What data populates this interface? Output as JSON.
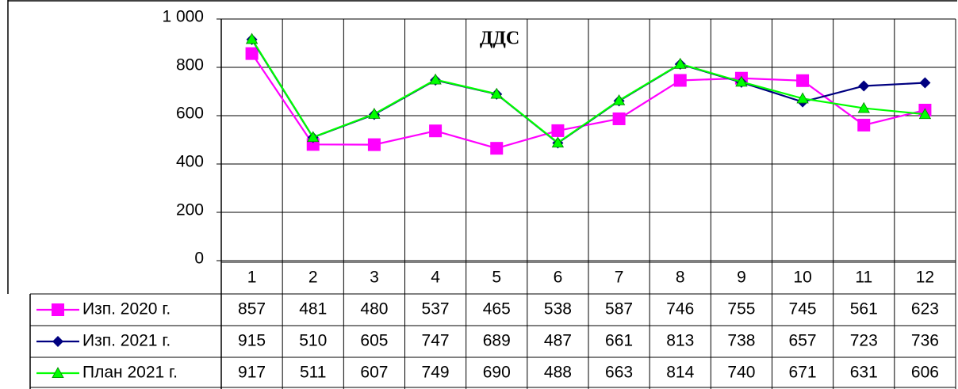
{
  "chart_data": {
    "type": "line",
    "title": "ДДС",
    "categories": [
      "1",
      "2",
      "3",
      "4",
      "5",
      "6",
      "7",
      "8",
      "9",
      "10",
      "11",
      "12"
    ],
    "series": [
      {
        "name": "Изп. 2020 г.",
        "color": "#ff00ff",
        "marker": "square",
        "values": [
          857,
          481,
          480,
          537,
          465,
          538,
          587,
          746,
          755,
          745,
          561,
          623
        ]
      },
      {
        "name": "Изп. 2021 г.",
        "color": "#000080",
        "marker": "diamond",
        "values": [
          915,
          510,
          605,
          747,
          689,
          487,
          661,
          813,
          738,
          657,
          723,
          736
        ]
      },
      {
        "name": "План 2021 г.",
        "color": "#00ff00",
        "marker": "triangle",
        "values": [
          917,
          511,
          607,
          749,
          690,
          488,
          663,
          814,
          740,
          671,
          631,
          606
        ]
      }
    ],
    "ylim": [
      0,
      1000
    ],
    "yticks": [
      0,
      200,
      400,
      600,
      800,
      {
        "value": 1000,
        "label": "1 000"
      }
    ],
    "grid": true
  }
}
